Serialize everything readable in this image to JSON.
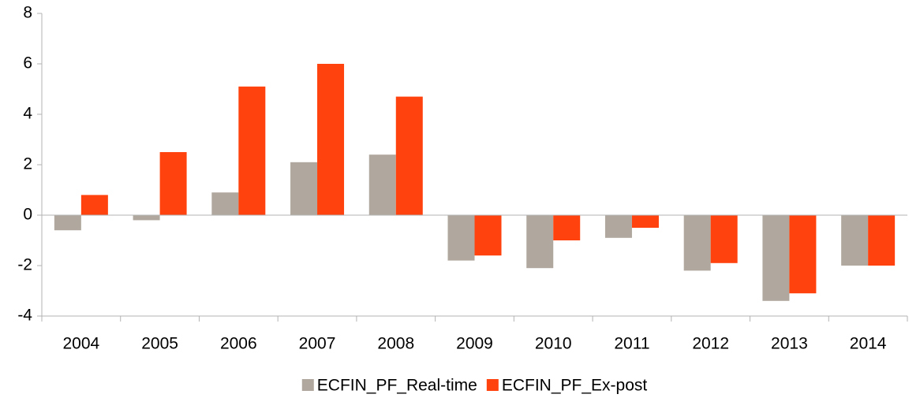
{
  "chart_data": {
    "type": "bar",
    "categories": [
      "2004",
      "2005",
      "2006",
      "2007",
      "2008",
      "2009",
      "2010",
      "2011",
      "2012",
      "2013",
      "2014"
    ],
    "series": [
      {
        "name": "ECFIN_PF_Real-time",
        "color": "#b0a89e",
        "values": [
          -0.6,
          -0.2,
          0.9,
          2.1,
          2.4,
          -1.8,
          -2.1,
          -0.9,
          -2.2,
          -3.4,
          -2.0
        ]
      },
      {
        "name": "ECFIN_PF_Ex-post",
        "color": "#ff420e",
        "values": [
          0.8,
          2.5,
          5.1,
          6.0,
          4.7,
          -1.6,
          -1.0,
          -0.5,
          -1.9,
          -3.1,
          -2.0
        ]
      }
    ],
    "ylim": [
      -4,
      8
    ],
    "yticks": [
      -4,
      -2,
      0,
      2,
      4,
      6,
      8
    ],
    "grid": false,
    "legend": "bottom"
  }
}
